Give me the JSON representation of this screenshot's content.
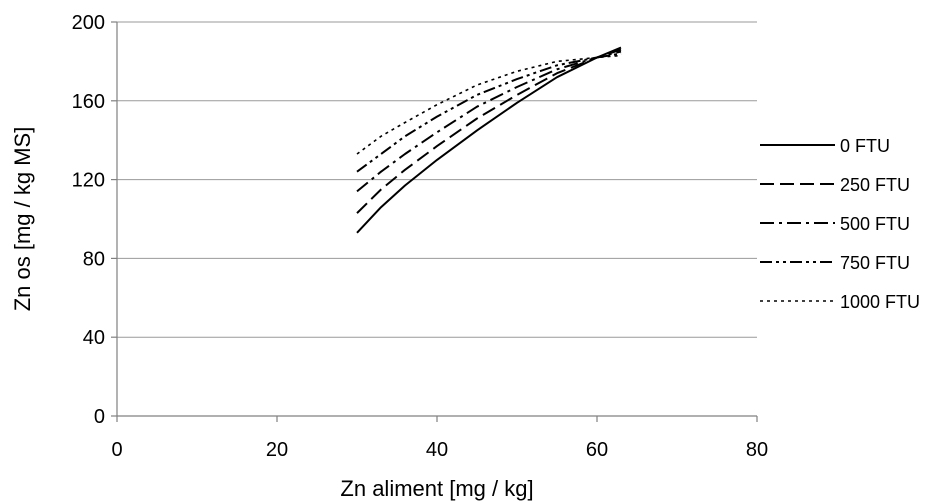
{
  "chart_data": {
    "type": "line",
    "title": "",
    "xlabel": "Zn aliment [mg / kg]",
    "ylabel": "Zn os [mg / kg MS]",
    "xlim": [
      0,
      80
    ],
    "ylim": [
      0,
      200
    ],
    "xticks": [
      0,
      20,
      40,
      60,
      80
    ],
    "yticks": [
      0,
      40,
      80,
      120,
      160,
      200
    ],
    "grid": "horizontal",
    "legend_position": "right",
    "series": [
      {
        "name": "0 FTU",
        "dash": "solid",
        "x": [
          30,
          33,
          36,
          40,
          45,
          50,
          55,
          60,
          63
        ],
        "y": [
          93,
          106,
          117,
          130,
          145,
          159,
          172,
          182,
          187
        ]
      },
      {
        "name": "250 FTU",
        "dash": "dash",
        "x": [
          30,
          33,
          36,
          40,
          45,
          50,
          55,
          60,
          63
        ],
        "y": [
          103,
          115,
          125,
          137,
          151,
          163,
          174,
          182,
          186
        ]
      },
      {
        "name": "500 FTU",
        "dash": "dashdot",
        "x": [
          30,
          33,
          36,
          40,
          45,
          50,
          55,
          60,
          63
        ],
        "y": [
          114,
          124,
          133,
          144,
          157,
          167,
          176,
          182,
          185
        ]
      },
      {
        "name": "750 FTU",
        "dash": "dashdotdot",
        "x": [
          30,
          33,
          36,
          40,
          45,
          50,
          55,
          60,
          63
        ],
        "y": [
          124,
          133,
          142,
          152,
          163,
          171,
          178,
          182,
          184
        ]
      },
      {
        "name": "1000 FTU",
        "dash": "dot",
        "x": [
          30,
          33,
          36,
          40,
          45,
          50,
          55,
          60,
          63
        ],
        "y": [
          133,
          142,
          149,
          158,
          168,
          175,
          180,
          182,
          183
        ]
      }
    ]
  }
}
